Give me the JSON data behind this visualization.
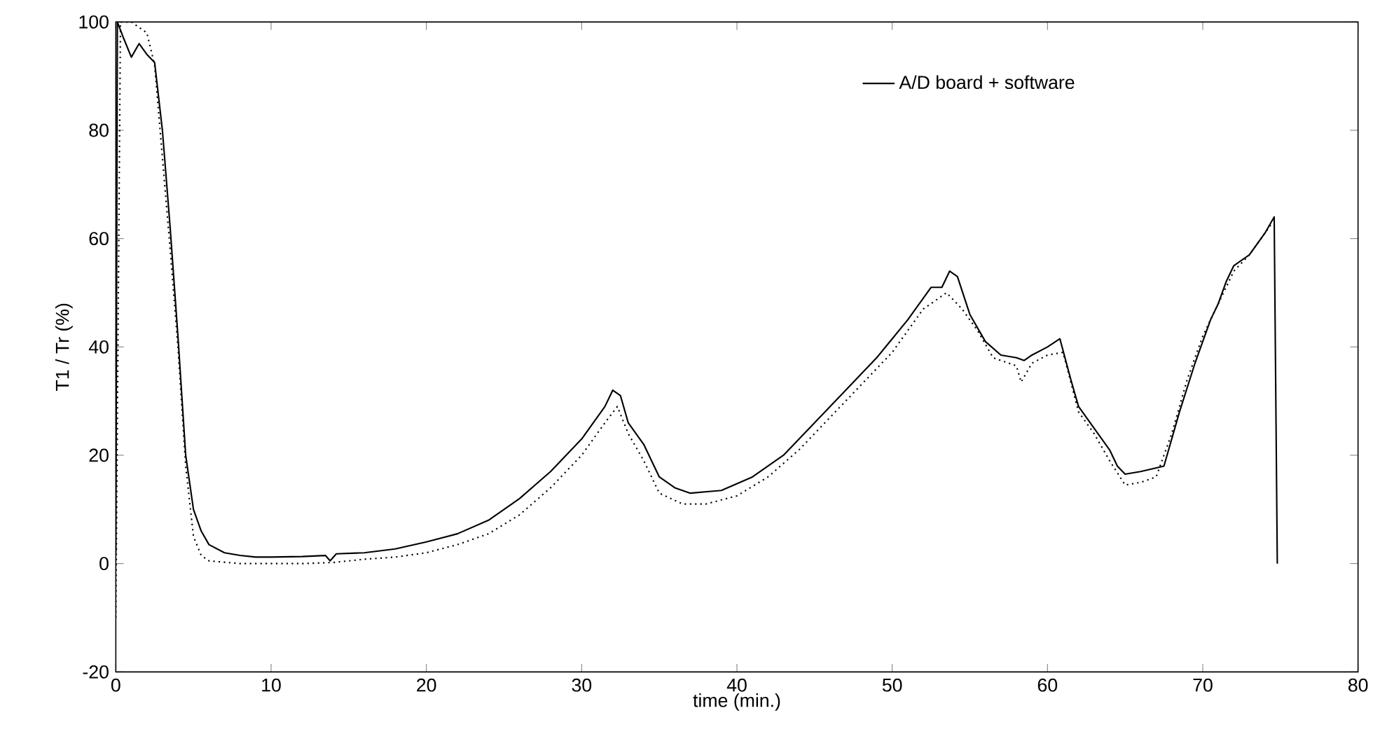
{
  "chart_data": {
    "type": "line",
    "xlabel": "time (min.)",
    "ylabel": "T1 / Tr (%)",
    "xlim": [
      0,
      80
    ],
    "xticks": [
      0,
      10,
      20,
      30,
      40,
      50,
      60,
      70,
      80
    ],
    "ylim": [
      -20,
      100
    ],
    "yticks": [
      -20,
      0,
      20,
      40,
      60,
      80,
      100
    ],
    "grid": false,
    "legend": "top right",
    "marker": "none",
    "series": [
      {
        "name": "A/D board + software",
        "color": "#000000",
        "line_style": "solid",
        "x": [
          0,
          0.1,
          0.5,
          1,
          1.5,
          2,
          2.5,
          3,
          3.5,
          4,
          4.5,
          5,
          5.5,
          6,
          7,
          8,
          9,
          10,
          12,
          13.5,
          13.8,
          14.2,
          16,
          18,
          20,
          22,
          24,
          26,
          28,
          30,
          31.5,
          32,
          32.5,
          33,
          34,
          35,
          36,
          37,
          39,
          41,
          43,
          45,
          47,
          49,
          51,
          52.5,
          53.2,
          53.7,
          54.2,
          55,
          56,
          57,
          58,
          58.5,
          59,
          60,
          60.8,
          61.5,
          62,
          63,
          64,
          64.5,
          65,
          66,
          67.5,
          68.5,
          69.5,
          70.5,
          71,
          71.5,
          72,
          73,
          74,
          74.6,
          74.8
        ],
        "values": [
          2,
          100,
          97,
          93.5,
          96,
          94,
          92.5,
          80,
          62,
          42,
          20,
          10,
          6,
          3.5,
          2,
          1.5,
          1.2,
          1.2,
          1.3,
          1.5,
          0.5,
          1.8,
          2,
          2.7,
          4,
          5.5,
          8,
          12,
          17,
          23,
          29,
          32,
          31,
          26,
          22,
          16,
          14,
          13,
          13.5,
          16,
          20,
          26,
          32,
          38,
          45,
          51,
          51,
          54,
          53,
          46,
          41,
          38.5,
          38,
          37.5,
          38.5,
          40,
          41.5,
          34,
          29,
          25,
          21,
          18,
          16.5,
          17,
          18,
          28,
          37,
          45,
          48,
          52,
          55,
          57,
          61,
          64,
          0
        ]
      },
      {
        "color": "#000000",
        "line_style": "dotted",
        "x": [
          0,
          0.3,
          1,
          2,
          2.5,
          3,
          3.5,
          4,
          4.5,
          5,
          5.5,
          6,
          8,
          10,
          12,
          14,
          16,
          18,
          20,
          22,
          24,
          26,
          28,
          30,
          31.5,
          32.3,
          33,
          34,
          35,
          36.5,
          38,
          40,
          42,
          44,
          46,
          48,
          50,
          52,
          53.5,
          54.5,
          55.5,
          56.5,
          58,
          58.3,
          59,
          60,
          61,
          62,
          63,
          64,
          65,
          66,
          67,
          68,
          69,
          70,
          71,
          72,
          73,
          74,
          74.5
        ],
        "values": [
          -10,
          100,
          100,
          98,
          92,
          75,
          58,
          40,
          18,
          5,
          1.5,
          0.5,
          0,
          0,
          0,
          0.2,
          0.8,
          1.2,
          2,
          3.5,
          5.5,
          9,
          14,
          20,
          26,
          29,
          24,
          19,
          13,
          11,
          11,
          12.5,
          16,
          21,
          27,
          33,
          39,
          47,
          50,
          47,
          43,
          38,
          36.5,
          33.5,
          37,
          38.5,
          39,
          28,
          24,
          19,
          14.5,
          15,
          16,
          24,
          34,
          42,
          48,
          54,
          57,
          61,
          63
        ]
      }
    ]
  }
}
